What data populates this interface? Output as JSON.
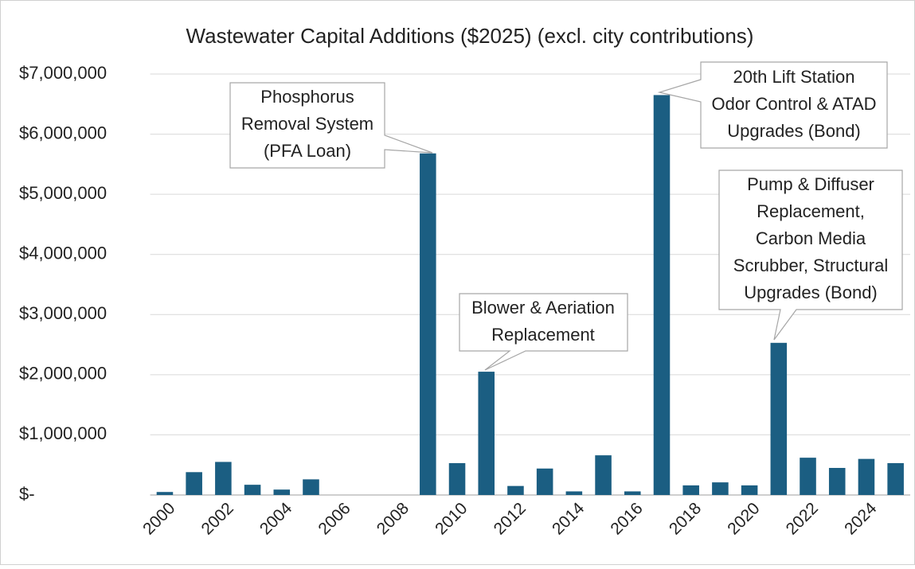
{
  "chart_data": {
    "type": "bar",
    "title": "Wastewater Capital Additions ($2025) (excl. city contributions)",
    "categories": [
      "2000",
      null,
      "2002",
      null,
      "2004",
      null,
      "2006",
      null,
      "2008",
      null,
      "2010",
      null,
      "2012",
      null,
      "2014",
      null,
      "2016",
      null,
      "2018",
      null,
      "2020",
      null,
      "2022",
      null,
      "2024",
      null
    ],
    "values": [
      50000,
      380000,
      550000,
      170000,
      90000,
      260000,
      0,
      0,
      0,
      5680000,
      530000,
      2050000,
      150000,
      440000,
      60000,
      660000,
      60000,
      6650000,
      160000,
      210000,
      160000,
      2530000,
      620000,
      450000,
      600000,
      530000
    ],
    "color": "#1b5e82",
    "ylim": [
      0,
      7000000
    ],
    "yticks": [
      {
        "value": 0,
        "label": "$-"
      },
      {
        "value": 1000000,
        "label": "$1,000,000"
      },
      {
        "value": 2000000,
        "label": "$2,000,000"
      },
      {
        "value": 3000000,
        "label": "$3,000,000"
      },
      {
        "value": 4000000,
        "label": "$4,000,000"
      },
      {
        "value": 5000000,
        "label": "$5,000,000"
      },
      {
        "value": 6000000,
        "label": "$6,000,000"
      },
      {
        "value": 7000000,
        "label": "$7,000,000"
      }
    ],
    "grid": true,
    "annotations": [
      {
        "lines": [
          "Phosphorus",
          "Removal System",
          "(PFA Loan)"
        ]
      },
      {
        "lines": [
          "Blower & Aeriation",
          "Replacement"
        ]
      },
      {
        "lines": [
          "20th Lift Station",
          "Odor Control & ATAD",
          "Upgrades (Bond)"
        ]
      },
      {
        "lines": [
          "Pump & Diffuser",
          "Replacement,",
          "Carbon Media",
          "Scrubber, Structural",
          "Upgrades (Bond)"
        ]
      }
    ]
  }
}
